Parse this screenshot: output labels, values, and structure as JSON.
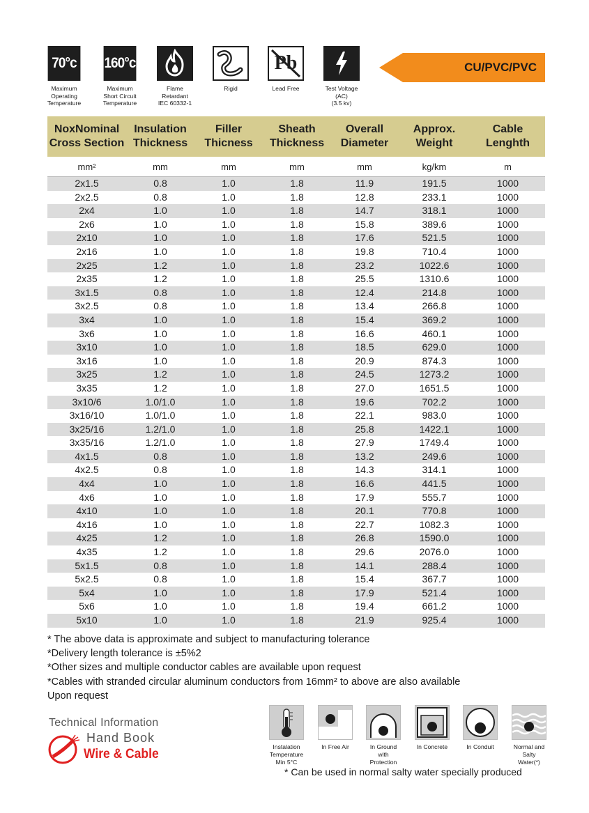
{
  "top_icons": [
    {
      "icon": "temperature-70-icon",
      "glyph": "70°c",
      "caption": "Maximum\nOperating\nTemperature"
    },
    {
      "icon": "temperature-160-icon",
      "glyph": "160°c",
      "caption": "Maximum\nShort Circuit\nTemperature"
    },
    {
      "icon": "flame-icon",
      "glyph": "",
      "caption": "Flame\nRetardant\nIEC 60332-1"
    },
    {
      "icon": "rigid-cable-icon",
      "glyph": "",
      "caption": "Rigid"
    },
    {
      "icon": "lead-free-icon",
      "glyph": "Pb",
      "caption": "Lead Free"
    },
    {
      "icon": "lightning-icon",
      "glyph": "",
      "caption": "Test Voltage\n(AC)\n(3.5 kv)"
    }
  ],
  "badge": {
    "label": "CU/PVC/PVC",
    "color": "#f28c1c"
  },
  "table": {
    "header_color": "#d6cc90",
    "columns": [
      "NoxNominal\nCross Section",
      "Insulation\nThickness",
      "Filler\nThicness",
      "Sheath\nThickness",
      "Overall\nDiameter",
      "Approx.\nWeight",
      "Cable\nLenghth"
    ],
    "units": [
      "mm²",
      "mm",
      "mm",
      "mm",
      "mm",
      "kg/km",
      "m"
    ],
    "rows": [
      [
        "2x1.5",
        "0.8",
        "1.0",
        "1.8",
        "11.9",
        "191.5",
        "1000"
      ],
      [
        "2x2.5",
        "0.8",
        "1.0",
        "1.8",
        "12.8",
        "233.1",
        "1000"
      ],
      [
        "2x4",
        "1.0",
        "1.0",
        "1.8",
        "14.7",
        "318.1",
        "1000"
      ],
      [
        "2x6",
        "1.0",
        "1.0",
        "1.8",
        "15.8",
        "389.6",
        "1000"
      ],
      [
        "2x10",
        "1.0",
        "1.0",
        "1.8",
        "17.6",
        "521.5",
        "1000"
      ],
      [
        "2x16",
        "1.0",
        "1.0",
        "1.8",
        "19.8",
        "710.4",
        "1000"
      ],
      [
        "2x25",
        "1.2",
        "1.0",
        "1.8",
        "23.2",
        "1022.6",
        "1000"
      ],
      [
        "2x35",
        "1.2",
        "1.0",
        "1.8",
        "25.5",
        "1310.6",
        "1000"
      ],
      [
        "3x1.5",
        "0.8",
        "1.0",
        "1.8",
        "12.4",
        "214.8",
        "1000"
      ],
      [
        "3x2.5",
        "0.8",
        "1.0",
        "1.8",
        "13.4",
        "266.8",
        "1000"
      ],
      [
        "3x4",
        "1.0",
        "1.0",
        "1.8",
        "15.4",
        "369.2",
        "1000"
      ],
      [
        "3x6",
        "1.0",
        "1.0",
        "1.8",
        "16.6",
        "460.1",
        "1000"
      ],
      [
        "3x10",
        "1.0",
        "1.0",
        "1.8",
        "18.5",
        "629.0",
        "1000"
      ],
      [
        "3x16",
        "1.0",
        "1.0",
        "1.8",
        "20.9",
        "874.3",
        "1000"
      ],
      [
        "3x25",
        "1.2",
        "1.0",
        "1.8",
        "24.5",
        "1273.2",
        "1000"
      ],
      [
        "3x35",
        "1.2",
        "1.0",
        "1.8",
        "27.0",
        "1651.5",
        "1000"
      ],
      [
        "3x10/6",
        "1.0/1.0",
        "1.0",
        "1.8",
        "19.6",
        "702.2",
        "1000"
      ],
      [
        "3x16/10",
        "1.0/1.0",
        "1.0",
        "1.8",
        "22.1",
        "983.0",
        "1000"
      ],
      [
        "3x25/16",
        "1.2/1.0",
        "1.0",
        "1.8",
        "25.8",
        "1422.1",
        "1000"
      ],
      [
        "3x35/16",
        "1.2/1.0",
        "1.0",
        "1.8",
        "27.9",
        "1749.4",
        "1000"
      ],
      [
        "4x1.5",
        "0.8",
        "1.0",
        "1.8",
        "13.2",
        "249.6",
        "1000"
      ],
      [
        "4x2.5",
        "0.8",
        "1.0",
        "1.8",
        "14.3",
        "314.1",
        "1000"
      ],
      [
        "4x4",
        "1.0",
        "1.0",
        "1.8",
        "16.6",
        "441.5",
        "1000"
      ],
      [
        "4x6",
        "1.0",
        "1.0",
        "1.8",
        "17.9",
        "555.7",
        "1000"
      ],
      [
        "4x10",
        "1.0",
        "1.0",
        "1.8",
        "20.1",
        "770.8",
        "1000"
      ],
      [
        "4x16",
        "1.0",
        "1.0",
        "1.8",
        "22.7",
        "1082.3",
        "1000"
      ],
      [
        "4x25",
        "1.2",
        "1.0",
        "1.8",
        "26.8",
        "1590.0",
        "1000"
      ],
      [
        "4x35",
        "1.2",
        "1.0",
        "1.8",
        "29.6",
        "2076.0",
        "1000"
      ],
      [
        "5x1.5",
        "0.8",
        "1.0",
        "1.8",
        "14.1",
        "288.4",
        "1000"
      ],
      [
        "5x2.5",
        "0.8",
        "1.0",
        "1.8",
        "15.4",
        "367.7",
        "1000"
      ],
      [
        "5x4",
        "1.0",
        "1.0",
        "1.8",
        "17.9",
        "521.4",
        "1000"
      ],
      [
        "5x6",
        "1.0",
        "1.0",
        "1.8",
        "19.4",
        "661.2",
        "1000"
      ],
      [
        "5x10",
        "1.0",
        "1.0",
        "1.8",
        "21.9",
        "925.4",
        "1000"
      ]
    ]
  },
  "notes": [
    "* The above data is approximate and subject to manufacturing tolerance",
    "*Delivery length tolerance is ±5%2",
    "*Other sizes and multiple conductor cables are available upon request",
    "*Cables with stranded circular aluminum conductors from 16mm² to above are also available",
    "Upon request"
  ],
  "brand": {
    "line1": "Technical Information",
    "line2": "Hand Book",
    "line3": "Wire & Cable",
    "accent": "#e02020"
  },
  "install_icons": [
    {
      "icon": "thermometer-icon",
      "caption": "Instalation\nTemperature\nMin 5°C"
    },
    {
      "icon": "free-air-icon",
      "caption": "In Free Air"
    },
    {
      "icon": "in-ground-icon",
      "caption": "In Ground\nwith\nProtection"
    },
    {
      "icon": "in-concrete-icon",
      "caption": "In Concrete"
    },
    {
      "icon": "in-conduit-icon",
      "caption": "In Conduit"
    },
    {
      "icon": "salty-water-icon",
      "caption": "Normal and\nSalty\nWater(*)"
    }
  ],
  "footnote": "* Can be used in normal salty water specially produced"
}
